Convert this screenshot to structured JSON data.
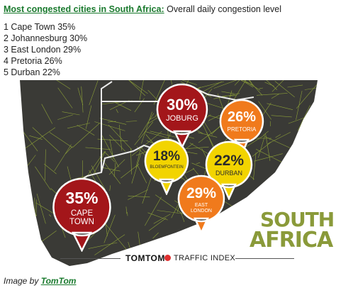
{
  "header": {
    "title_link": "Most congested cities in South Africa:",
    "subtitle": "Overall daily congestion level"
  },
  "rankings": [
    "1 Cape Town 35%",
    "2 Johannesburg 30%",
    "3 East London 29%",
    "4 Pretoria 26%",
    "5 Durban 22%"
  ],
  "infographic": {
    "bubbles": [
      {
        "pct": "35%",
        "name_line1": "CAPE",
        "name_line2": "TOWN",
        "color": "#a3161a",
        "value": 35
      },
      {
        "pct": "30%",
        "name_line1": "JOBURG",
        "name_line2": "",
        "color": "#a3161a",
        "value": 30
      },
      {
        "pct": "26%",
        "name_line1": "PRETORIA",
        "name_line2": "",
        "color": "#f07a1c",
        "value": 26
      },
      {
        "pct": "18%",
        "name_line1": "BLOEMFONTEIN",
        "name_line2": "",
        "color": "#f2d400",
        "value": 18
      },
      {
        "pct": "22%",
        "name_line1": "DURBAN",
        "name_line2": "",
        "color": "#f2d400",
        "value": 22
      },
      {
        "pct": "29%",
        "name_line1": "EAST",
        "name_line2": "LONDON",
        "color": "#f07a1c",
        "value": 29
      }
    ],
    "logo_line1": "SOUTH",
    "logo_line2": "AFRICA",
    "logo_color": "#8a9a3a",
    "map_color": "#3a3a36",
    "road_color": "#a8c23a",
    "brand": "TOMTOM",
    "brand_suffix": "TRAFFIC INDEX"
  },
  "credit": {
    "prefix": "Image by",
    "link": "TomTom"
  }
}
